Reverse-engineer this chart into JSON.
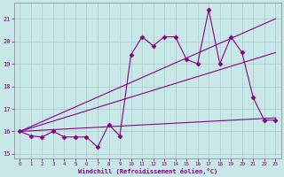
{
  "xlabel": "Windchill (Refroidissement éolien,°C)",
  "ylabel": "",
  "bg_color": "#c8e8e8",
  "line_color": "#880088",
  "grid_color": "#aacccc",
  "xlim": [
    -0.5,
    23.5
  ],
  "ylim": [
    14.8,
    21.7
  ],
  "yticks": [
    15,
    16,
    17,
    18,
    19,
    20,
    21
  ],
  "xticks": [
    0,
    1,
    2,
    3,
    4,
    5,
    6,
    7,
    8,
    9,
    10,
    11,
    12,
    13,
    14,
    15,
    16,
    17,
    18,
    19,
    20,
    21,
    22,
    23
  ],
  "data_x": [
    0,
    1,
    2,
    3,
    4,
    5,
    6,
    7,
    8,
    9,
    10,
    11,
    12,
    13,
    14,
    15,
    16,
    17,
    18,
    19,
    20,
    21,
    22,
    23
  ],
  "data_y": [
    16.0,
    15.8,
    15.75,
    16.0,
    15.75,
    15.75,
    15.75,
    15.3,
    16.3,
    15.8,
    19.4,
    20.2,
    19.8,
    20.2,
    20.2,
    19.2,
    19.0,
    21.4,
    19.0,
    20.2,
    19.5,
    17.5,
    16.5,
    16.5
  ],
  "trend1_x": [
    0,
    23
  ],
  "trend1_y": [
    16.0,
    21.0
  ],
  "trend2_x": [
    0,
    23
  ],
  "trend2_y": [
    16.0,
    19.5
  ],
  "trend3_x": [
    0,
    23
  ],
  "trend3_y": [
    16.0,
    16.6
  ]
}
